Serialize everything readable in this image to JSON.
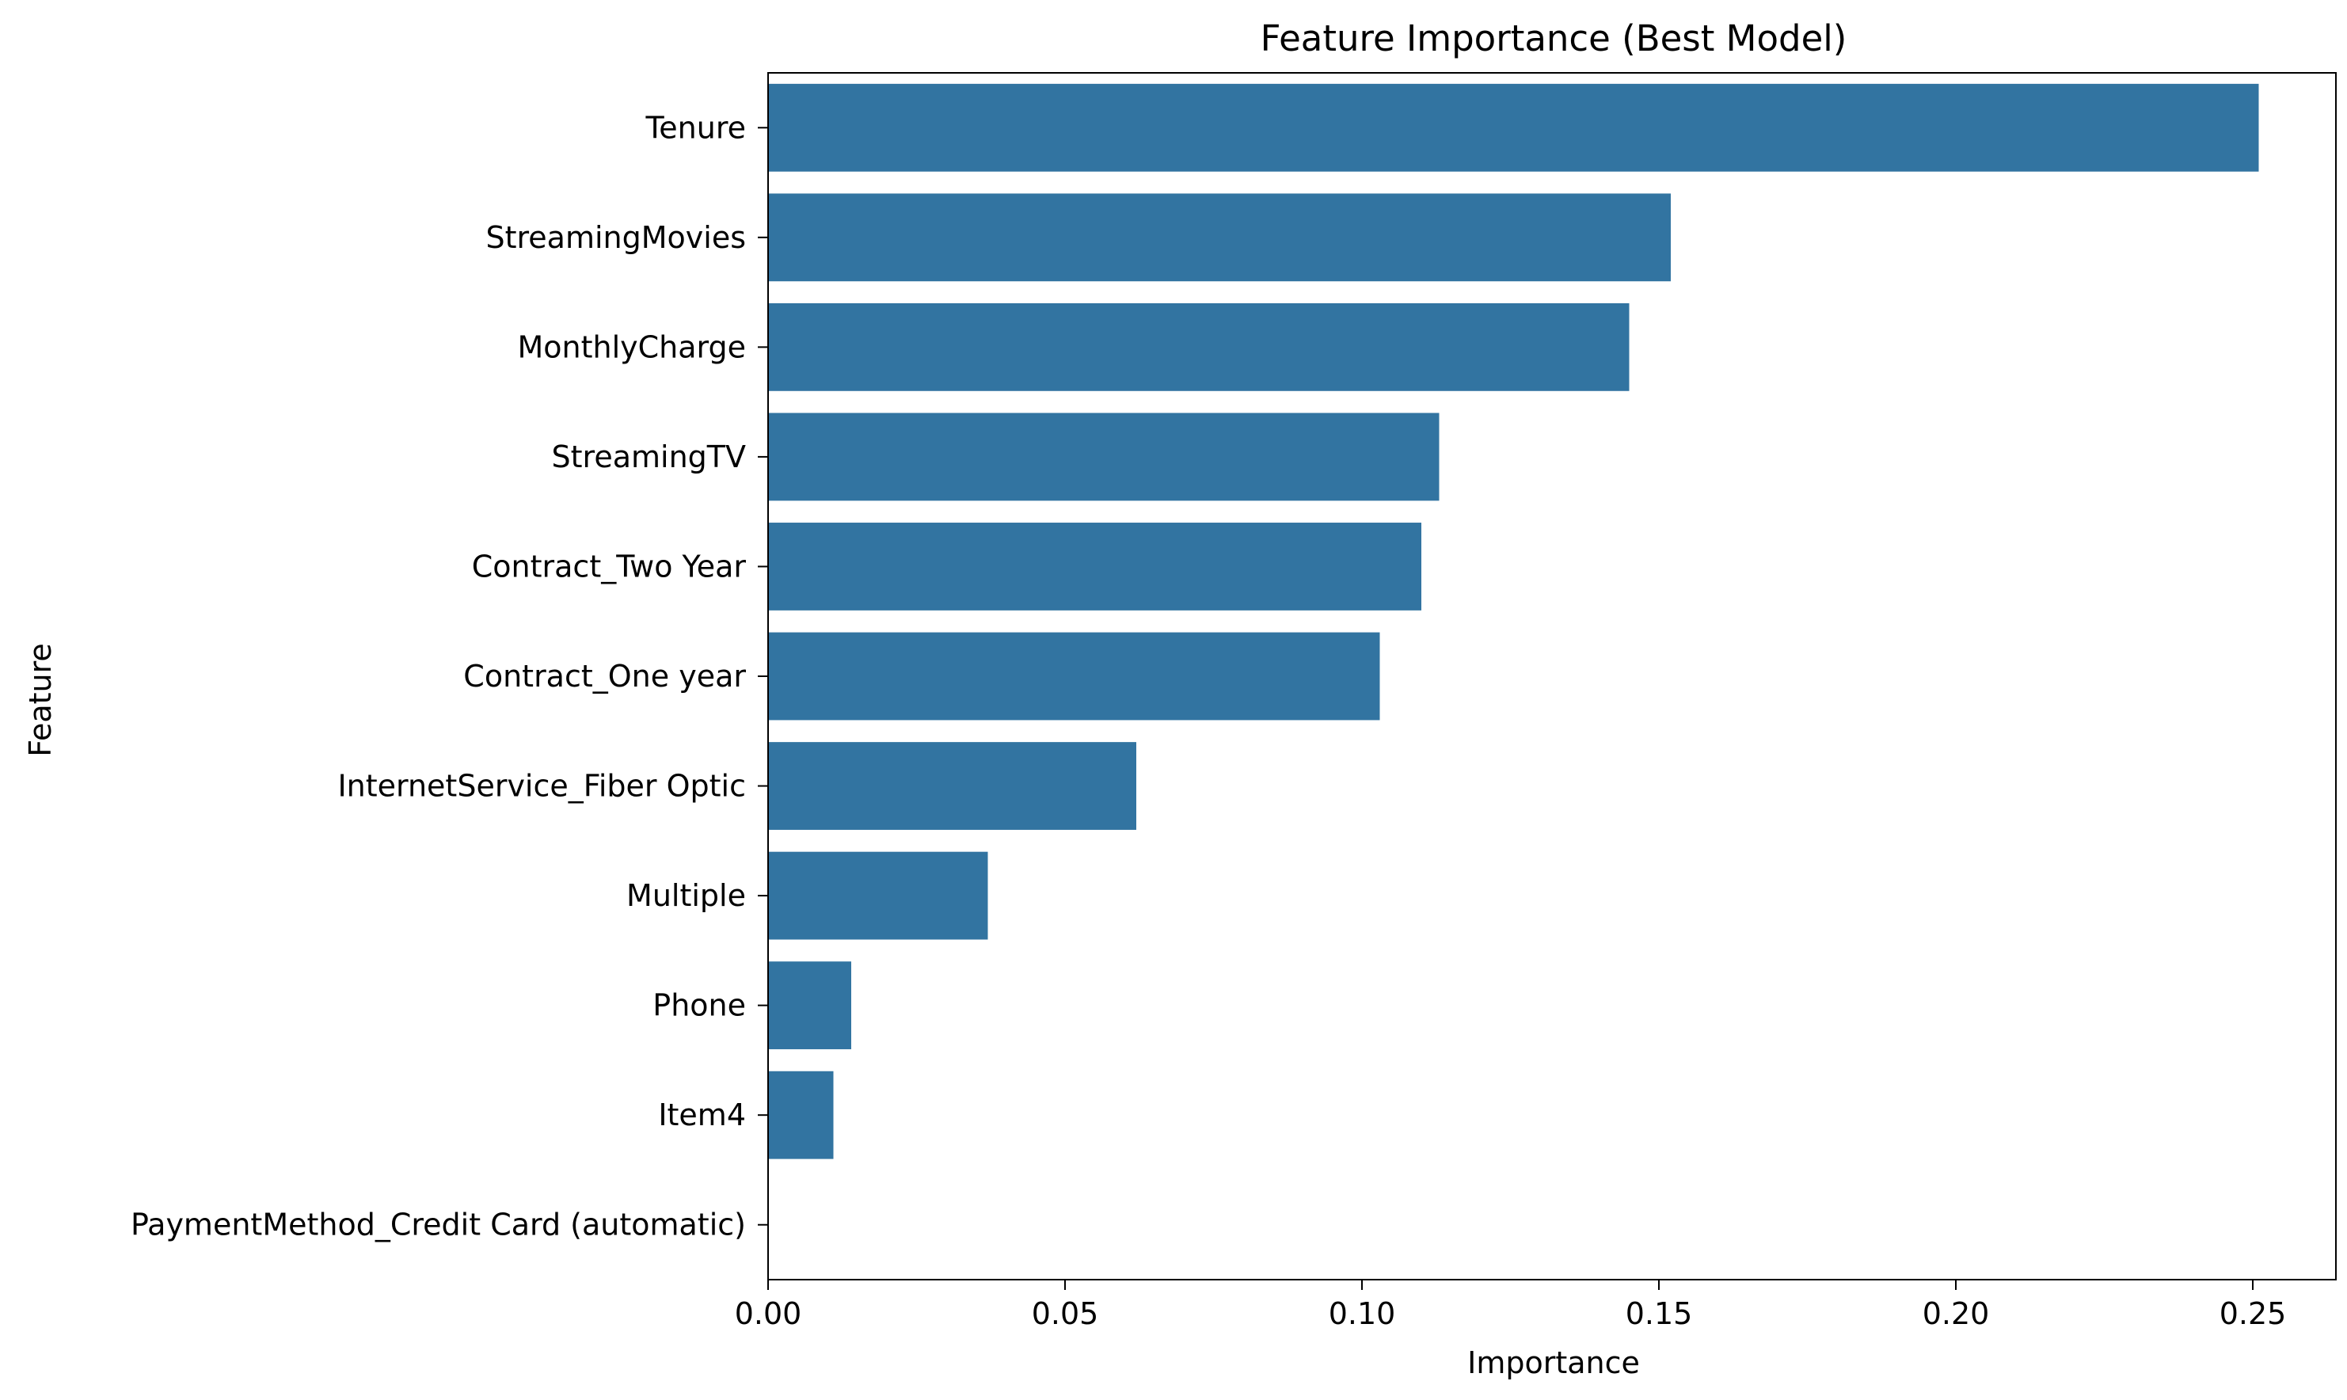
{
  "chart_data": {
    "type": "bar",
    "orientation": "horizontal",
    "title": "Feature Importance (Best Model)",
    "xlabel": "Importance",
    "ylabel": "Feature",
    "xlim": [
      0,
      0.264
    ],
    "xticks": [
      0.0,
      0.05,
      0.1,
      0.15,
      0.2,
      0.25
    ],
    "xtick_labels": [
      "0.00",
      "0.05",
      "0.10",
      "0.15",
      "0.20",
      "0.25"
    ],
    "grid": false,
    "bar_color": "#3274a1",
    "categories": [
      "Tenure",
      "StreamingMovies",
      "MonthlyCharge",
      "StreamingTV",
      "Contract_Two Year",
      "Contract_One year",
      "InternetService_Fiber Optic",
      "Multiple",
      "Phone",
      "Item4",
      "PaymentMethod_Credit Card (automatic)"
    ],
    "values": [
      0.251,
      0.152,
      0.145,
      0.113,
      0.11,
      0.103,
      0.062,
      0.037,
      0.014,
      0.011,
      0.0
    ]
  }
}
